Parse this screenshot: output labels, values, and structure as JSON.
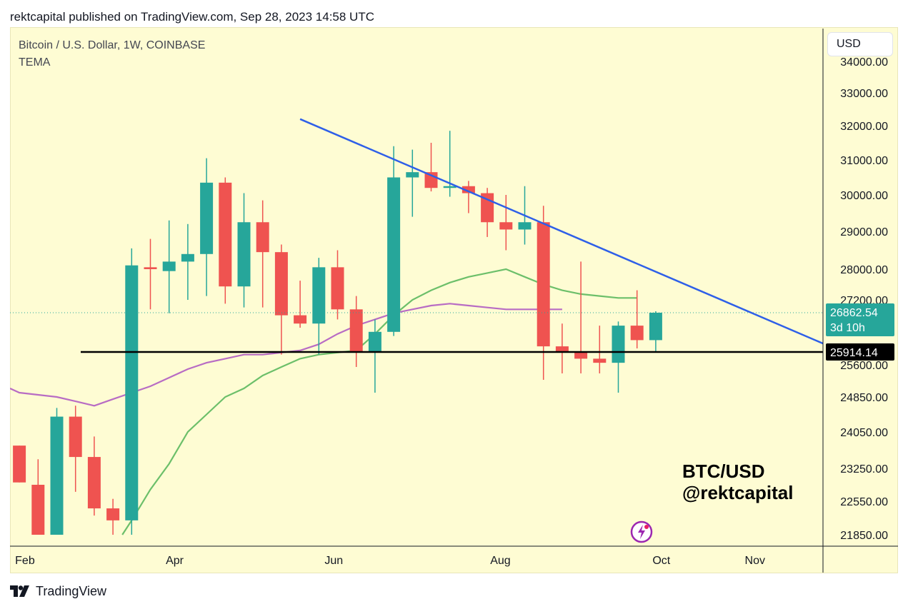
{
  "header": {
    "text": "rektcapital published on TradingView.com, Sep 28, 2023 14:58 UTC"
  },
  "symbol": {
    "title": "Bitcoin / U.S. Dollar, 1W, COINBASE",
    "indicator": "TEMA"
  },
  "currency_button": "USD",
  "watermark": {
    "line1": "BTC/USD",
    "line2": "@rektcapital"
  },
  "footer": {
    "brand": "TradingView"
  },
  "icons": {
    "logo": "tradingview-logo-icon",
    "flash": "flash-icon"
  },
  "colors": {
    "bull": "#26a69a",
    "bear": "#ef5350",
    "trendline": "#2e5fe8",
    "support": "#000000",
    "tema_fast": "#6cbf6a",
    "tema_slow": "#b86cc4",
    "background": "#fefcd3"
  },
  "chart_data": {
    "type": "candlestick",
    "y_ticks": [
      "34000.00",
      "33000.00",
      "32000.00",
      "31000.00",
      "30000.00",
      "29000.00",
      "28000.00",
      "27200.00",
      "25600.00",
      "24850.00",
      "24050.00",
      "23250.00",
      "22550.00",
      "21850.00"
    ],
    "x_ticks": [
      "Feb",
      "Apr",
      "Jun",
      "Aug",
      "Oct",
      "Nov"
    ],
    "last_price_label": "26862.54",
    "countdown_label": "3d 10h",
    "support_label": "25914.14",
    "candles": [
      {
        "o": 23750,
        "h": 23750,
        "l": 22950,
        "c": 22950
      },
      {
        "o": 22900,
        "h": 23450,
        "l": 21850,
        "c": 21850
      },
      {
        "o": 21850,
        "h": 24600,
        "l": 21850,
        "c": 24400
      },
      {
        "o": 24400,
        "h": 24650,
        "l": 22750,
        "c": 23500
      },
      {
        "o": 23500,
        "h": 23950,
        "l": 22250,
        "c": 22400
      },
      {
        "o": 22400,
        "h": 22600,
        "l": 21850,
        "c": 22150
      },
      {
        "o": 22150,
        "h": 28550,
        "l": 21850,
        "c": 28100
      },
      {
        "o": 28050,
        "h": 28800,
        "l": 26950,
        "c": 28000
      },
      {
        "o": 27950,
        "h": 29300,
        "l": 26850,
        "c": 28200
      },
      {
        "o": 28200,
        "h": 29200,
        "l": 27200,
        "c": 28400
      },
      {
        "o": 28400,
        "h": 31050,
        "l": 27300,
        "c": 30350
      },
      {
        "o": 30350,
        "h": 30500,
        "l": 27100,
        "c": 27550
      },
      {
        "o": 27550,
        "h": 30050,
        "l": 27000,
        "c": 29250
      },
      {
        "o": 29250,
        "h": 29850,
        "l": 27000,
        "c": 28450
      },
      {
        "o": 28450,
        "h": 28650,
        "l": 25850,
        "c": 26800
      },
      {
        "o": 26800,
        "h": 27700,
        "l": 26500,
        "c": 26600
      },
      {
        "o": 26600,
        "h": 28300,
        "l": 25850,
        "c": 28050
      },
      {
        "o": 28050,
        "h": 28500,
        "l": 26700,
        "c": 26950
      },
      {
        "o": 26950,
        "h": 27300,
        "l": 25550,
        "c": 25900
      },
      {
        "o": 25900,
        "h": 26700,
        "l": 24950,
        "c": 26400
      },
      {
        "o": 26400,
        "h": 31400,
        "l": 26300,
        "c": 30500
      },
      {
        "o": 30500,
        "h": 31300,
        "l": 29400,
        "c": 30650
      },
      {
        "o": 30650,
        "h": 31500,
        "l": 30100,
        "c": 30200
      },
      {
        "o": 30200,
        "h": 31850,
        "l": 29950,
        "c": 30250
      },
      {
        "o": 30250,
        "h": 30400,
        "l": 29500,
        "c": 30050
      },
      {
        "o": 30050,
        "h": 30200,
        "l": 28850,
        "c": 29250
      },
      {
        "o": 29250,
        "h": 30000,
        "l": 28500,
        "c": 29050
      },
      {
        "o": 29050,
        "h": 30250,
        "l": 28650,
        "c": 29250
      },
      {
        "o": 29250,
        "h": 29700,
        "l": 25250,
        "c": 26050
      },
      {
        "o": 26050,
        "h": 26600,
        "l": 25400,
        "c": 25900
      },
      {
        "o": 25900,
        "h": 28200,
        "l": 25400,
        "c": 25750
      },
      {
        "o": 25750,
        "h": 26550,
        "l": 25400,
        "c": 25650
      },
      {
        "o": 25650,
        "h": 26650,
        "l": 24950,
        "c": 26550
      },
      {
        "o": 26550,
        "h": 27450,
        "l": 26000,
        "c": 26200
      },
      {
        "o": 26200,
        "h": 26900,
        "l": 25900,
        "c": 26862
      }
    ],
    "support_level": 25914.14,
    "trendline": {
      "from_index": 15.5,
      "from_price": 32200,
      "to_index": 42.5,
      "to_price": 26300
    },
    "tema_fast": [
      {
        "i": 5.5,
        "v": 21850
      },
      {
        "i": 6,
        "v": 22150
      },
      {
        "i": 7,
        "v": 22800
      },
      {
        "i": 8,
        "v": 23350
      },
      {
        "i": 9,
        "v": 24050
      },
      {
        "i": 10,
        "v": 24450
      },
      {
        "i": 11,
        "v": 24850
      },
      {
        "i": 12,
        "v": 25050
      },
      {
        "i": 13,
        "v": 25350
      },
      {
        "i": 14,
        "v": 25550
      },
      {
        "i": 15,
        "v": 25750
      },
      {
        "i": 16,
        "v": 25850
      },
      {
        "i": 17,
        "v": 25900
      },
      {
        "i": 18,
        "v": 25950
      },
      {
        "i": 19,
        "v": 26350
      },
      {
        "i": 20,
        "v": 26800
      },
      {
        "i": 21,
        "v": 27200
      },
      {
        "i": 22,
        "v": 27450
      },
      {
        "i": 23,
        "v": 27650
      },
      {
        "i": 24,
        "v": 27800
      },
      {
        "i": 25,
        "v": 27900
      },
      {
        "i": 26,
        "v": 28000
      },
      {
        "i": 27,
        "v": 27800
      },
      {
        "i": 28,
        "v": 27600
      },
      {
        "i": 29,
        "v": 27450
      },
      {
        "i": 30,
        "v": 27350
      },
      {
        "i": 31,
        "v": 27300
      },
      {
        "i": 32,
        "v": 27250
      },
      {
        "i": 33,
        "v": 27250
      }
    ],
    "tema_slow": [
      {
        "i": -0.5,
        "v": 25050
      },
      {
        "i": 0,
        "v": 24950
      },
      {
        "i": 1,
        "v": 24900
      },
      {
        "i": 2,
        "v": 24850
      },
      {
        "i": 3,
        "v": 24750
      },
      {
        "i": 4,
        "v": 24650
      },
      {
        "i": 5,
        "v": 24800
      },
      {
        "i": 6,
        "v": 24950
      },
      {
        "i": 7,
        "v": 25100
      },
      {
        "i": 8,
        "v": 25300
      },
      {
        "i": 9,
        "v": 25500
      },
      {
        "i": 10,
        "v": 25650
      },
      {
        "i": 11,
        "v": 25750
      },
      {
        "i": 12,
        "v": 25850
      },
      {
        "i": 13,
        "v": 25850
      },
      {
        "i": 14,
        "v": 25900
      },
      {
        "i": 15,
        "v": 25950
      },
      {
        "i": 16,
        "v": 26100
      },
      {
        "i": 17,
        "v": 26350
      },
      {
        "i": 18,
        "v": 26550
      },
      {
        "i": 19,
        "v": 26700
      },
      {
        "i": 20,
        "v": 26850
      },
      {
        "i": 21,
        "v": 26950
      },
      {
        "i": 22,
        "v": 27050
      },
      {
        "i": 23,
        "v": 27100
      },
      {
        "i": 24,
        "v": 27050
      },
      {
        "i": 25,
        "v": 27000
      },
      {
        "i": 26,
        "v": 26950
      },
      {
        "i": 27,
        "v": 26950
      },
      {
        "i": 28,
        "v": 26950
      },
      {
        "i": 29,
        "v": 26950
      }
    ]
  }
}
